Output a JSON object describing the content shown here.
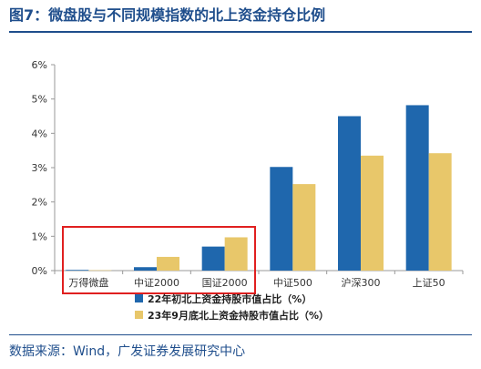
{
  "title": "图7：微盘股与不同规模指数的北上资金持仓比例",
  "source": "数据来源：Wind，广发证券发展研究中心",
  "chart_data": {
    "type": "bar",
    "categories": [
      "万得微盘",
      "中证2000",
      "国证2000",
      "中证500",
      "沪深300",
      "上证50"
    ],
    "series": [
      {
        "name": "22年初北上资金持股市值占比（%）",
        "color": "#1f67ad",
        "values": [
          0.02,
          0.1,
          0.7,
          3.02,
          4.5,
          4.82
        ]
      },
      {
        "name": "23年9月底北上资金持股市值占比（%）",
        "color": "#e8c76a",
        "values": [
          0.01,
          0.4,
          0.97,
          2.52,
          3.35,
          3.42
        ]
      }
    ],
    "yticks": [
      "0%",
      "1%",
      "2%",
      "3%",
      "4%",
      "5%",
      "6%"
    ],
    "ylim": [
      0,
      6
    ],
    "grid": false,
    "legend_position": "bottom",
    "highlight": {
      "categories": [
        "万得微盘",
        "中证2000",
        "国证2000"
      ],
      "color": "#e02020"
    }
  }
}
